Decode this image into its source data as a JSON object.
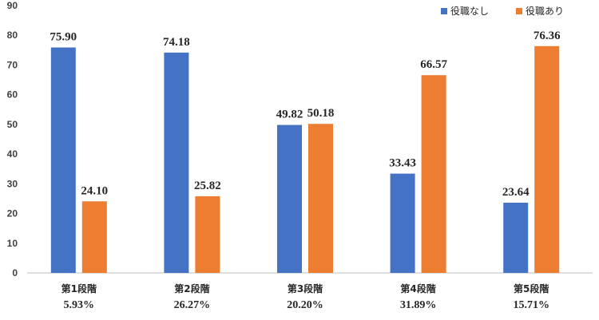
{
  "chart_data": {
    "type": "bar",
    "categories": [
      "第1段階",
      "第2段階",
      "第3段階",
      "第4段階",
      "第5段階"
    ],
    "category_sublabels": [
      "5.93%",
      "26.27%",
      "20.20%",
      "31.89%",
      "15.71%"
    ],
    "series": [
      {
        "name": "役職なし",
        "color": "#4472C4",
        "values": [
          75.9,
          74.18,
          49.82,
          33.43,
          23.64
        ]
      },
      {
        "name": "役職あり",
        "color": "#ED7D31",
        "values": [
          24.1,
          25.82,
          50.18,
          66.57,
          76.36
        ]
      }
    ],
    "data_labels": [
      [
        "75.90",
        "74.18",
        "49.82",
        "33.43",
        "23.64"
      ],
      [
        "24.10",
        "25.82",
        "50.18",
        "66.57",
        "76.36"
      ]
    ],
    "yticks": [
      "0",
      "10",
      "20",
      "30",
      "40",
      "50",
      "60",
      "70",
      "80",
      "90"
    ],
    "ylim": [
      0,
      90
    ],
    "grid": false,
    "legend_position": "top-right",
    "title": "",
    "xlabel": "",
    "ylabel": ""
  }
}
